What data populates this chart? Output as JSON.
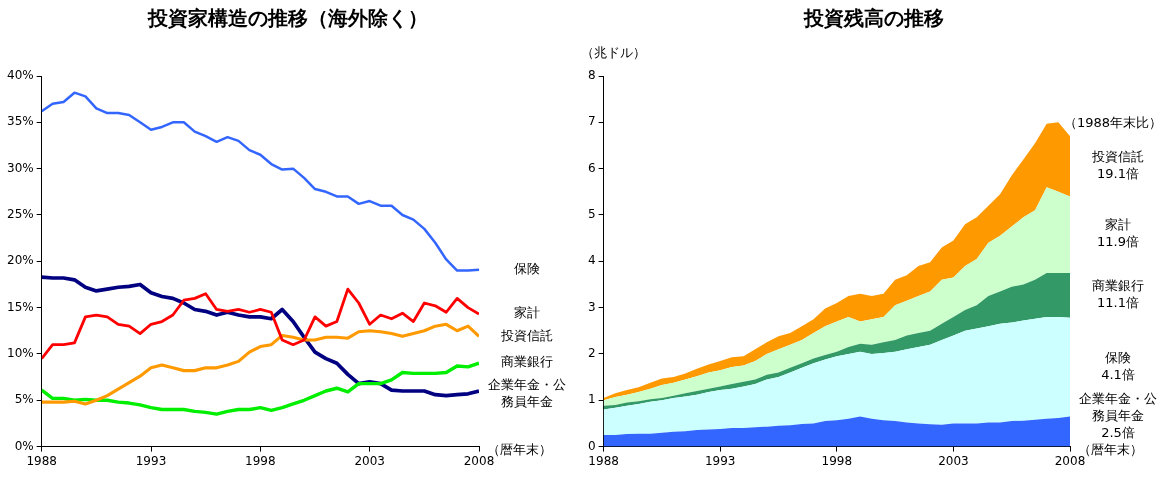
{
  "chart_data": [
    {
      "type": "line",
      "title": "投資家構造の推移（海外除く）",
      "annotations": [
        "（暦年末）"
      ],
      "x": [
        1988,
        1988.5,
        1989,
        1989.5,
        1990,
        1990.5,
        1991,
        1991.5,
        1992,
        1992.5,
        1993,
        1993.5,
        1994,
        1994.5,
        1995,
        1995.5,
        1996,
        1996.5,
        1997,
        1997.5,
        1998,
        1998.5,
        1999,
        1999.5,
        2000,
        2000.5,
        2001,
        2001.5,
        2002,
        2002.5,
        2003,
        2003.5,
        2004,
        2004.5,
        2005,
        2005.5,
        2006,
        2006.5,
        2007,
        2007.5,
        2008
      ],
      "xlim": [
        1988,
        2008
      ],
      "xticks": [
        1988,
        1993,
        1998,
        2003,
        2008
      ],
      "ylim": [
        0,
        40
      ],
      "yticks": [
        {
          "value": 0,
          "label": "0%"
        },
        {
          "value": 5,
          "label": "5%"
        },
        {
          "value": 10,
          "label": "10%"
        },
        {
          "value": 15,
          "label": "15%"
        },
        {
          "value": 20,
          "label": "20%"
        },
        {
          "value": 25,
          "label": "25%"
        },
        {
          "value": 30,
          "label": "30%"
        },
        {
          "value": 35,
          "label": "35%"
        },
        {
          "value": 40,
          "label": "40%"
        }
      ],
      "grid": false,
      "legend": false,
      "series": [
        {
          "name": "保険",
          "color": "#3366ff",
          "values": [
            36.2,
            37.0,
            37.2,
            38.2,
            37.8,
            36.5,
            36.0,
            36.0,
            35.8,
            35.0,
            34.2,
            34.5,
            35.0,
            35.0,
            34.0,
            33.5,
            32.9,
            33.4,
            33.0,
            32.0,
            31.5,
            30.5,
            29.9,
            30.0,
            29.0,
            27.8,
            27.5,
            27.0,
            27.0,
            26.2,
            26.5,
            26.0,
            26.0,
            25.0,
            24.5,
            23.5,
            22.0,
            20.2,
            19.0,
            19.0,
            19.1
          ]
        },
        {
          "name": "家計",
          "color": "#ff0000",
          "values": [
            9.5,
            11.0,
            11.0,
            11.2,
            14.0,
            14.2,
            14.0,
            13.2,
            13.0,
            12.2,
            13.2,
            13.5,
            14.2,
            15.8,
            16.0,
            16.5,
            14.8,
            14.6,
            14.8,
            14.5,
            14.8,
            14.5,
            11.5,
            11.0,
            11.5,
            14.0,
            13.0,
            13.5,
            17.0,
            15.5,
            13.2,
            14.2,
            13.8,
            14.4,
            13.5,
            15.5,
            15.2,
            14.5,
            16.0,
            15.0,
            14.3
          ]
        },
        {
          "name": "投資信託",
          "color": "#ff9900",
          "values": [
            4.8,
            4.8,
            4.8,
            4.9,
            4.6,
            5.0,
            5.5,
            6.2,
            6.9,
            7.6,
            8.5,
            8.8,
            8.5,
            8.2,
            8.2,
            8.5,
            8.5,
            8.8,
            9.2,
            10.2,
            10.8,
            11.0,
            12.0,
            11.8,
            11.5,
            11.5,
            11.8,
            11.8,
            11.7,
            12.4,
            12.5,
            12.4,
            12.2,
            11.9,
            12.2,
            12.5,
            13.0,
            13.2,
            12.5,
            13.0,
            11.9
          ]
        },
        {
          "name": "商業銀行",
          "color": "#00ee00",
          "values": [
            6.1,
            5.2,
            5.2,
            5.0,
            5.1,
            5.0,
            5.0,
            4.8,
            4.7,
            4.5,
            4.2,
            4.0,
            4.0,
            4.0,
            3.8,
            3.7,
            3.5,
            3.8,
            4.0,
            4.0,
            4.2,
            3.9,
            4.2,
            4.6,
            5.0,
            5.5,
            6.0,
            6.3,
            5.9,
            6.8,
            6.8,
            6.8,
            7.2,
            8.0,
            7.9,
            7.9,
            7.9,
            8.0,
            8.7,
            8.6,
            9.0
          ]
        },
        {
          "name": "企業年金・公務員年金",
          "color": "#000080",
          "values": [
            18.3,
            18.2,
            18.2,
            18.0,
            17.2,
            16.8,
            17.0,
            17.2,
            17.3,
            17.5,
            16.6,
            16.2,
            16.0,
            15.5,
            14.8,
            14.6,
            14.2,
            14.5,
            14.2,
            14.0,
            14.0,
            13.8,
            14.8,
            13.5,
            11.8,
            10.2,
            9.5,
            9.0,
            7.8,
            6.8,
            7.0,
            6.8,
            6.1,
            6.0,
            6.0,
            6.0,
            5.6,
            5.5,
            5.6,
            5.7,
            6.0
          ]
        }
      ]
    },
    {
      "type": "area",
      "title": "投資残高の推移",
      "ylabel": "（兆ドル）",
      "stacked": true,
      "annotations": [
        "（暦年末）",
        "（1988年末比）",
        "19.1倍",
        "11.9倍",
        "11.1倍",
        "4.1倍",
        "2.5倍"
      ],
      "x": [
        1988,
        1988.5,
        1989,
        1989.5,
        1990,
        1990.5,
        1991,
        1991.5,
        1992,
        1992.5,
        1993,
        1993.5,
        1994,
        1994.5,
        1995,
        1995.5,
        1996,
        1996.5,
        1997,
        1997.5,
        1998,
        1998.5,
        1999,
        1999.5,
        2000,
        2000.5,
        2001,
        2001.5,
        2002,
        2002.5,
        2003,
        2003.5,
        2004,
        2004.5,
        2005,
        2005.5,
        2006,
        2006.5,
        2007,
        2007.5,
        2008
      ],
      "xlim": [
        1988,
        2008
      ],
      "xticks": [
        1988,
        1993,
        1998,
        2003,
        2008
      ],
      "ylim": [
        0,
        8
      ],
      "yticks": [
        0,
        1,
        2,
        3,
        4,
        5,
        6,
        7,
        8
      ],
      "grid": false,
      "legend": false,
      "series": [
        {
          "name": "企業年金・公務員年金",
          "color": "#3366ff",
          "values": [
            0.25,
            0.25,
            0.27,
            0.28,
            0.28,
            0.3,
            0.32,
            0.33,
            0.36,
            0.37,
            0.38,
            0.4,
            0.4,
            0.42,
            0.43,
            0.45,
            0.46,
            0.49,
            0.5,
            0.55,
            0.57,
            0.6,
            0.65,
            0.6,
            0.57,
            0.55,
            0.52,
            0.5,
            0.48,
            0.47,
            0.5,
            0.5,
            0.5,
            0.52,
            0.52,
            0.55,
            0.56,
            0.58,
            0.6,
            0.62,
            0.65
          ]
        },
        {
          "name": "保険",
          "color": "#ccffff",
          "values": [
            0.55,
            0.59,
            0.61,
            0.64,
            0.69,
            0.7,
            0.73,
            0.75,
            0.76,
            0.81,
            0.84,
            0.85,
            0.9,
            0.93,
            1.02,
            1.05,
            1.14,
            1.21,
            1.3,
            1.33,
            1.38,
            1.4,
            1.4,
            1.4,
            1.45,
            1.5,
            1.58,
            1.65,
            1.72,
            1.83,
            1.9,
            2.0,
            2.05,
            2.08,
            2.13,
            2.13,
            2.16,
            2.18,
            2.2,
            2.18,
            2.13
          ]
        },
        {
          "name": "商業銀行",
          "color": "#339966",
          "values": [
            0.08,
            0.06,
            0.07,
            0.06,
            0.05,
            0.05,
            0.05,
            0.07,
            0.08,
            0.07,
            0.08,
            0.1,
            0.1,
            0.1,
            0.1,
            0.1,
            0.1,
            0.1,
            0.1,
            0.1,
            0.1,
            0.15,
            0.17,
            0.2,
            0.23,
            0.25,
            0.3,
            0.3,
            0.3,
            0.35,
            0.4,
            0.45,
            0.5,
            0.65,
            0.7,
            0.77,
            0.78,
            0.84,
            0.95,
            0.95,
            0.97
          ]
        },
        {
          "name": "家計",
          "color": "#ccffcc",
          "values": [
            0.12,
            0.17,
            0.17,
            0.2,
            0.23,
            0.28,
            0.28,
            0.3,
            0.32,
            0.35,
            0.35,
            0.37,
            0.35,
            0.4,
            0.45,
            0.5,
            0.5,
            0.5,
            0.55,
            0.62,
            0.65,
            0.65,
            0.48,
            0.55,
            0.55,
            0.75,
            0.75,
            0.8,
            0.85,
            0.95,
            0.85,
            0.95,
            1.0,
            1.15,
            1.2,
            1.3,
            1.45,
            1.5,
            1.85,
            1.75,
            1.65
          ]
        },
        {
          "name": "投資信託",
          "color": "#ff9900",
          "values": [
            0.05,
            0.08,
            0.1,
            0.1,
            0.13,
            0.14,
            0.12,
            0.13,
            0.16,
            0.17,
            0.2,
            0.21,
            0.2,
            0.25,
            0.25,
            0.28,
            0.25,
            0.3,
            0.3,
            0.38,
            0.4,
            0.45,
            0.6,
            0.5,
            0.5,
            0.55,
            0.55,
            0.65,
            0.63,
            0.7,
            0.8,
            0.9,
            0.9,
            0.8,
            0.9,
            1.1,
            1.25,
            1.45,
            1.37,
            1.5,
            1.3
          ]
        }
      ]
    }
  ]
}
